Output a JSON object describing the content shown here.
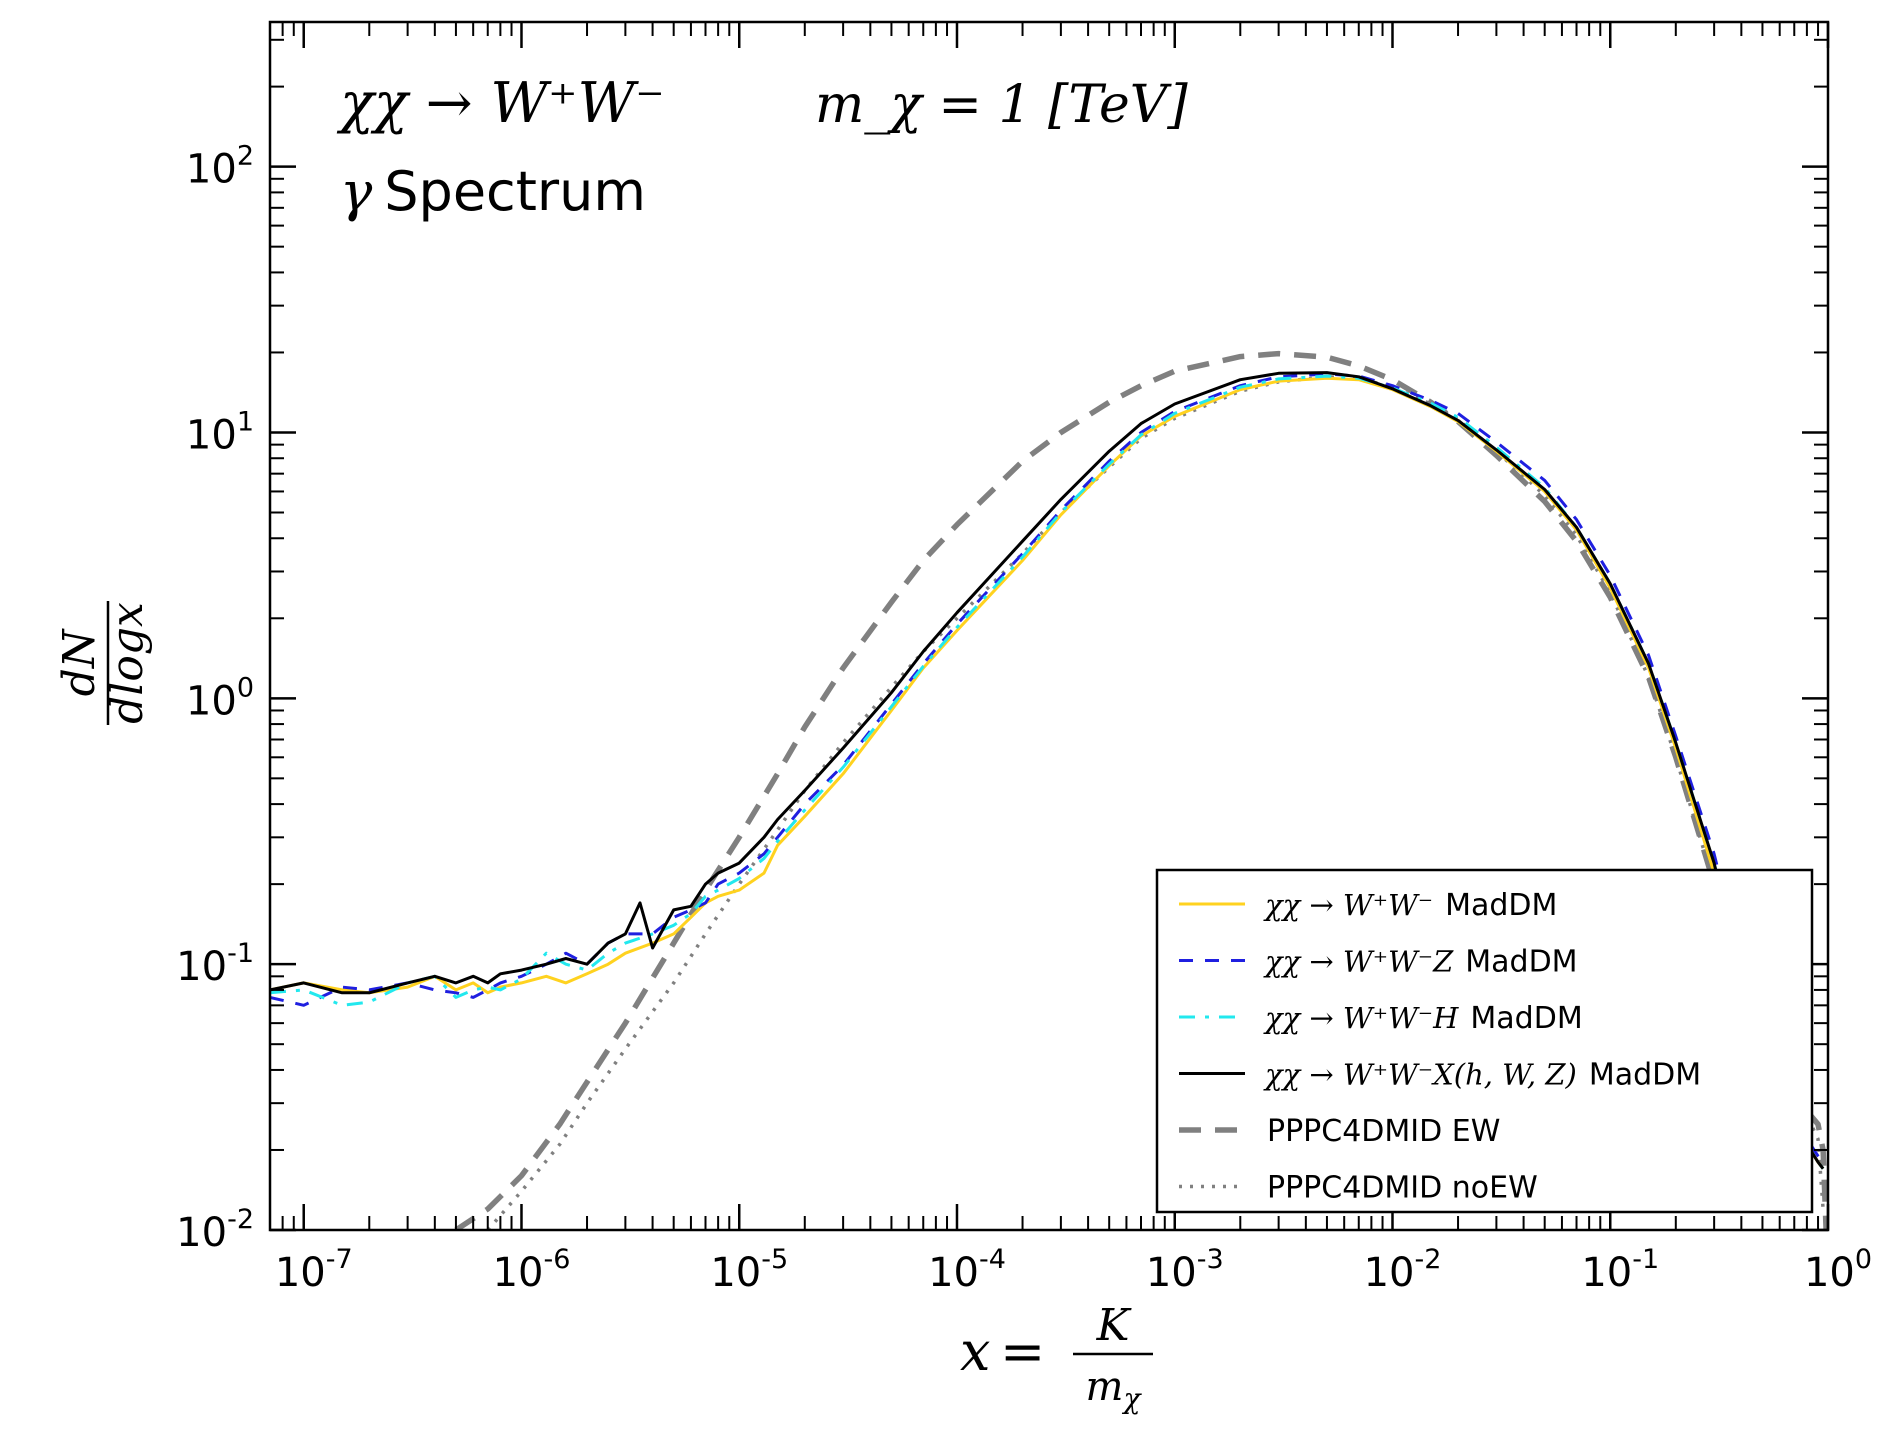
{
  "chart_data": {
    "type": "line",
    "xscale": "log",
    "yscale": "log",
    "xlim": [
      7e-08,
      1.0
    ],
    "ylim": [
      0.01,
      350
    ],
    "grid": false,
    "legend_position": "lower-right",
    "annotations": {
      "process": "χχ → W⁺W⁻",
      "mass": "m_χ = 1 [TeV]",
      "spectrum_label": "Spectrum",
      "spectrum_symbol": "γ"
    },
    "xlabel": "x = K / m_χ",
    "ylabel": "dN / dlogx",
    "xticks": [
      {
        "base": "10",
        "exp": "-7",
        "value": 1e-07
      },
      {
        "base": "10",
        "exp": "-6",
        "value": 1e-06
      },
      {
        "base": "10",
        "exp": "-5",
        "value": 1e-05
      },
      {
        "base": "10",
        "exp": "-4",
        "value": 0.0001
      },
      {
        "base": "10",
        "exp": "-3",
        "value": 0.001
      },
      {
        "base": "10",
        "exp": "-2",
        "value": 0.01
      },
      {
        "base": "10",
        "exp": "-1",
        "value": 0.1
      },
      {
        "base": "10",
        "exp": "0",
        "value": 1
      }
    ],
    "yticks": [
      {
        "base": "10",
        "exp": "-2",
        "value": 0.01
      },
      {
        "base": "10",
        "exp": "-1",
        "value": 0.1
      },
      {
        "base": "10",
        "exp": "0",
        "value": 1
      },
      {
        "base": "10",
        "exp": "1",
        "value": 10
      },
      {
        "base": "10",
        "exp": "2",
        "value": 100
      }
    ],
    "series": [
      {
        "name": "χχ → W⁺W⁻ MadDM",
        "legend_math": "χχ → W⁺W⁻",
        "legend_suffix": "MadDM",
        "color": "#FFD21F",
        "style": "solid",
        "x": [
          7e-08,
          1e-07,
          1.5e-07,
          2e-07,
          3e-07,
          4e-07,
          5e-07,
          6e-07,
          7e-07,
          8e-07,
          1e-06,
          1.3e-06,
          1.6e-06,
          2e-06,
          2.5e-06,
          3e-06,
          4e-06,
          5e-06,
          6e-06,
          7e-06,
          8e-06,
          1e-05,
          1.3e-05,
          1.5e-05,
          2e-05,
          3e-05,
          5e-05,
          7e-05,
          0.0001,
          0.0002,
          0.0003,
          0.0005,
          0.0007,
          0.001,
          0.002,
          0.003,
          0.005,
          0.007,
          0.01,
          0.015,
          0.02,
          0.03,
          0.05,
          0.07,
          0.1,
          0.15,
          0.2,
          0.3,
          0.4,
          0.5,
          0.6,
          0.7,
          0.8,
          0.9,
          0.95
        ],
        "y": [
          0.08,
          0.085,
          0.08,
          0.078,
          0.082,
          0.09,
          0.08,
          0.085,
          0.078,
          0.082,
          0.085,
          0.09,
          0.085,
          0.092,
          0.1,
          0.11,
          0.12,
          0.13,
          0.15,
          0.17,
          0.18,
          0.19,
          0.22,
          0.28,
          0.36,
          0.52,
          0.9,
          1.3,
          1.8,
          3.3,
          4.9,
          7.5,
          9.7,
          11.5,
          14.5,
          15.6,
          16.0,
          15.8,
          14.5,
          12.5,
          11,
          8.5,
          6,
          4.3,
          2.6,
          1.3,
          0.65,
          0.22,
          0.085,
          0.04,
          0.03,
          0.025,
          0.021,
          0.018,
          0.017
        ]
      },
      {
        "name": "χχ → W⁺W⁻Z MadDM",
        "legend_math": "χχ → W⁺W⁻Z",
        "legend_suffix": "MadDM",
        "color": "#1F1FE0",
        "style": "dashed",
        "x": [
          7e-08,
          1e-07,
          1.5e-07,
          2e-07,
          3e-07,
          4e-07,
          5e-07,
          6e-07,
          7e-07,
          8e-07,
          1e-06,
          1.3e-06,
          1.6e-06,
          2e-06,
          2.5e-06,
          3e-06,
          4e-06,
          5e-06,
          6e-06,
          7e-06,
          8e-06,
          1e-05,
          1.3e-05,
          1.5e-05,
          2e-05,
          3e-05,
          5e-05,
          7e-05,
          0.0001,
          0.0002,
          0.0003,
          0.0005,
          0.0007,
          0.001,
          0.002,
          0.003,
          0.005,
          0.007,
          0.01,
          0.015,
          0.02,
          0.03,
          0.05,
          0.07,
          0.1,
          0.15,
          0.2,
          0.3,
          0.4,
          0.5,
          0.6,
          0.7,
          0.8,
          0.9,
          0.95
        ],
        "y": [
          0.075,
          0.07,
          0.082,
          0.08,
          0.085,
          0.08,
          0.078,
          0.075,
          0.08,
          0.085,
          0.09,
          0.1,
          0.11,
          0.1,
          0.12,
          0.13,
          0.13,
          0.15,
          0.16,
          0.17,
          0.2,
          0.22,
          0.26,
          0.3,
          0.4,
          0.56,
          0.95,
          1.35,
          1.9,
          3.5,
          5.1,
          7.8,
          10,
          12,
          15,
          16.2,
          16.6,
          16.3,
          15,
          13.2,
          11.8,
          9.2,
          6.6,
          4.7,
          2.9,
          1.45,
          0.72,
          0.26,
          0.1,
          0.045,
          0.032,
          0.026,
          0.022,
          0.019,
          0.018
        ]
      },
      {
        "name": "χχ → W⁺W⁻H MadDM",
        "legend_math": "χχ → W⁺W⁻H",
        "legend_suffix": "MadDM",
        "color": "#22E8EE",
        "style": "dashdot",
        "x": [
          7e-08,
          1e-07,
          1.5e-07,
          2e-07,
          3e-07,
          4e-07,
          5e-07,
          6e-07,
          7e-07,
          8e-07,
          1e-06,
          1.3e-06,
          1.6e-06,
          2e-06,
          2.5e-06,
          3e-06,
          4e-06,
          5e-06,
          6e-06,
          7e-06,
          8e-06,
          1e-05,
          1.3e-05,
          1.5e-05,
          2e-05,
          3e-05,
          5e-05,
          7e-05,
          0.0001,
          0.0002,
          0.0003,
          0.0005,
          0.0007,
          0.001,
          0.002,
          0.003,
          0.005,
          0.007,
          0.01,
          0.015,
          0.02,
          0.03,
          0.05,
          0.07,
          0.1,
          0.15,
          0.2,
          0.3,
          0.4,
          0.5,
          0.6,
          0.7,
          0.8,
          0.9,
          0.95
        ],
        "y": [
          0.078,
          0.08,
          0.07,
          0.072,
          0.085,
          0.09,
          0.075,
          0.08,
          0.082,
          0.08,
          0.088,
          0.11,
          0.1,
          0.095,
          0.11,
          0.12,
          0.13,
          0.14,
          0.155,
          0.18,
          0.19,
          0.21,
          0.25,
          0.29,
          0.38,
          0.55,
          0.93,
          1.32,
          1.85,
          3.4,
          5.0,
          7.6,
          9.8,
          11.8,
          14.8,
          15.9,
          16.3,
          16.0,
          14.7,
          12.9,
          11.4,
          8.8,
          6.2,
          4.4,
          2.7,
          1.35,
          0.68,
          0.24,
          0.09,
          0.042,
          0.031,
          0.025,
          0.021,
          0.018,
          0.017
        ]
      },
      {
        "name": "χχ → W⁺W⁻X(h,W,Z) MadDM",
        "legend_math": "χχ → W⁺W⁻X(h, W, Z)",
        "legend_suffix": "MadDM",
        "color": "#000000",
        "style": "solid",
        "x": [
          7e-08,
          1e-07,
          1.5e-07,
          2e-07,
          3e-07,
          4e-07,
          5e-07,
          6e-07,
          7e-07,
          8e-07,
          1e-06,
          1.3e-06,
          1.6e-06,
          2e-06,
          2.5e-06,
          3e-06,
          3.5e-06,
          4e-06,
          5e-06,
          6e-06,
          7e-06,
          8e-06,
          1e-05,
          1.3e-05,
          1.5e-05,
          2e-05,
          3e-05,
          5e-05,
          7e-05,
          0.0001,
          0.0002,
          0.0003,
          0.0005,
          0.0007,
          0.001,
          0.002,
          0.003,
          0.005,
          0.007,
          0.01,
          0.015,
          0.02,
          0.03,
          0.05,
          0.07,
          0.1,
          0.15,
          0.2,
          0.3,
          0.4,
          0.5,
          0.6,
          0.7,
          0.8,
          0.9,
          0.95
        ],
        "y": [
          0.08,
          0.085,
          0.078,
          0.078,
          0.085,
          0.09,
          0.085,
          0.09,
          0.085,
          0.092,
          0.095,
          0.1,
          0.105,
          0.1,
          0.12,
          0.13,
          0.17,
          0.115,
          0.16,
          0.165,
          0.2,
          0.22,
          0.24,
          0.3,
          0.35,
          0.45,
          0.65,
          1.05,
          1.5,
          2.1,
          3.9,
          5.6,
          8.5,
          10.8,
          12.8,
          15.8,
          16.7,
          16.8,
          16.2,
          14.6,
          12.6,
          11.1,
          8.6,
          6.1,
          4.4,
          2.7,
          1.35,
          0.68,
          0.24,
          0.09,
          0.042,
          0.031,
          0.025,
          0.021,
          0.018,
          0.017
        ]
      },
      {
        "name": "PPPC4DMID EW",
        "legend_math": "",
        "legend_suffix": "PPPC4DMID EW",
        "color": "#808080",
        "style": "dashed-thick",
        "x": [
          5e-07,
          7e-07,
          1e-06,
          1.5e-06,
          2e-06,
          3e-06,
          5e-06,
          7e-06,
          1e-05,
          1.5e-05,
          2e-05,
          3e-05,
          5e-05,
          7e-05,
          0.0001,
          0.0002,
          0.0003,
          0.0005,
          0.0007,
          0.001,
          0.002,
          0.003,
          0.005,
          0.007,
          0.01,
          0.015,
          0.02,
          0.03,
          0.05,
          0.07,
          0.1,
          0.15,
          0.2,
          0.3,
          0.4,
          0.5,
          0.6,
          0.7,
          0.8,
          0.9,
          0.95,
          0.98
        ],
        "y": [
          0.01,
          0.012,
          0.016,
          0.025,
          0.036,
          0.06,
          0.12,
          0.19,
          0.3,
          0.52,
          0.78,
          1.3,
          2.3,
          3.3,
          4.5,
          7.8,
          10,
          13,
          15,
          17,
          19.3,
          19.8,
          19.2,
          17.8,
          15.8,
          13,
          11,
          8.2,
          5.5,
          3.9,
          2.4,
          1.2,
          0.6,
          0.2,
          0.08,
          0.045,
          0.035,
          0.03,
          0.028,
          0.025,
          0.02,
          0.01
        ]
      },
      {
        "name": "PPPC4DMID noEW",
        "legend_math": "",
        "legend_suffix": "PPPC4DMID noEW",
        "color": "#808080",
        "style": "dotted",
        "x": [
          7e-07,
          1e-06,
          1.5e-06,
          2e-06,
          3e-06,
          5e-06,
          7e-06,
          1e-05,
          1.5e-05,
          2e-05,
          3e-05,
          5e-05,
          7e-05,
          0.0001,
          0.0002,
          0.0003,
          0.0005,
          0.0007,
          0.001,
          0.002,
          0.003,
          0.005,
          0.007,
          0.01,
          0.015,
          0.02,
          0.03,
          0.05,
          0.07,
          0.1,
          0.15,
          0.2,
          0.3,
          0.4,
          0.5,
          0.6,
          0.7,
          0.8,
          0.9,
          0.95
        ],
        "y": [
          0.01,
          0.014,
          0.021,
          0.03,
          0.048,
          0.085,
          0.13,
          0.2,
          0.32,
          0.45,
          0.68,
          1.1,
          1.5,
          2.0,
          3.5,
          5.0,
          7.4,
          9.5,
          11.3,
          14.3,
          15.5,
          16.2,
          16.0,
          14.8,
          12.8,
          11.2,
          8.5,
          5.8,
          4.1,
          2.5,
          1.2,
          0.6,
          0.2,
          0.08,
          0.045,
          0.035,
          0.03,
          0.027,
          0.022,
          0.012
        ]
      }
    ]
  }
}
